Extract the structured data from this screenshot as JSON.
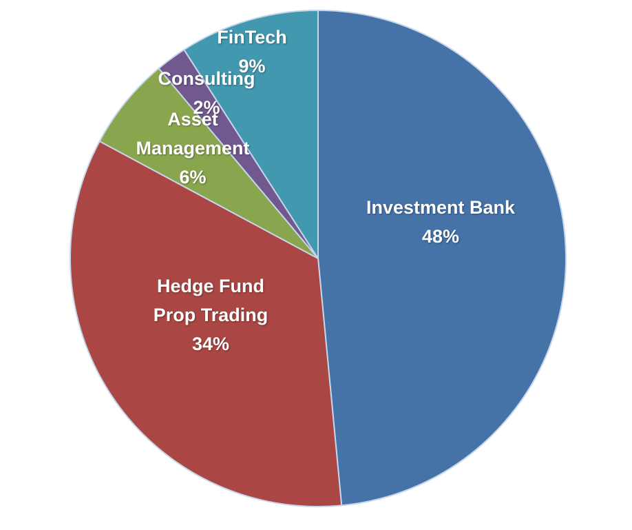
{
  "chart_data": {
    "type": "pie",
    "categories": [
      "Investment Bank",
      "Hedge Fund Prop Trading",
      "Asset Management",
      "Consulting",
      "FinTech"
    ],
    "values": [
      48,
      34,
      6,
      2,
      9
    ],
    "value_labels": [
      "48%",
      "34%",
      "6%",
      "2%",
      "9%"
    ],
    "colors": [
      "#4572a7",
      "#aa4643",
      "#89a54e",
      "#71588f",
      "#4198af"
    ]
  }
}
